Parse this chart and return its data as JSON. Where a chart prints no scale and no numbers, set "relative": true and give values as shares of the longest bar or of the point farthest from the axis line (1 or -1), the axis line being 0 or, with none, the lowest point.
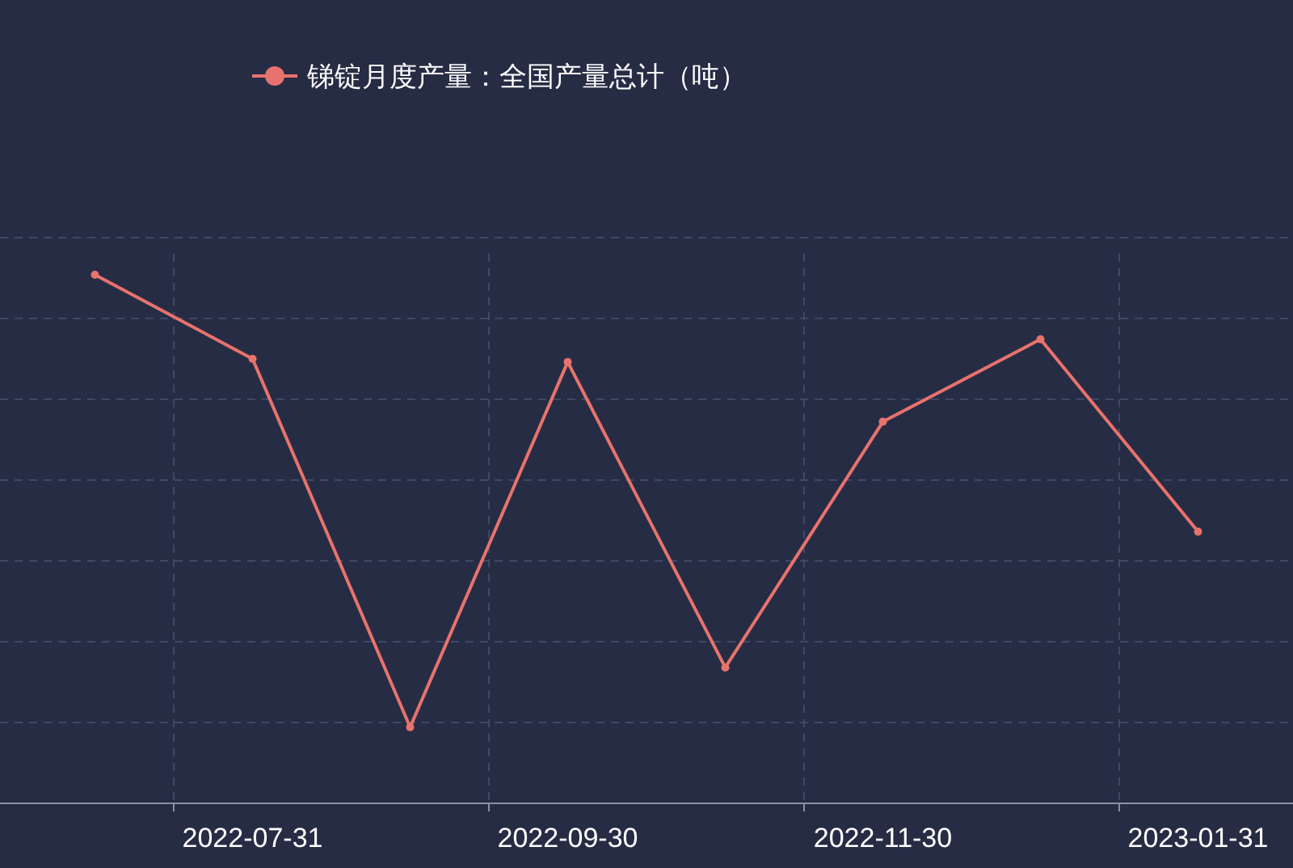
{
  "chart_data": {
    "type": "line",
    "relative": true,
    "categories": [
      null,
      "2022-07-31",
      null,
      "2022-09-30",
      null,
      "2022-11-30",
      null,
      "2023-01-31"
    ],
    "series": [
      {
        "name": "锑锭月度产量：全国产量总计（吨）",
        "color": "#e8736c",
        "values": [
          1,
          0.841,
          0.144,
          0.835,
          0.257,
          0.722,
          0.878,
          0.514
        ]
      }
    ],
    "grid": true,
    "legend": "top",
    "marker": "circle",
    "line_style": "solid"
  }
}
